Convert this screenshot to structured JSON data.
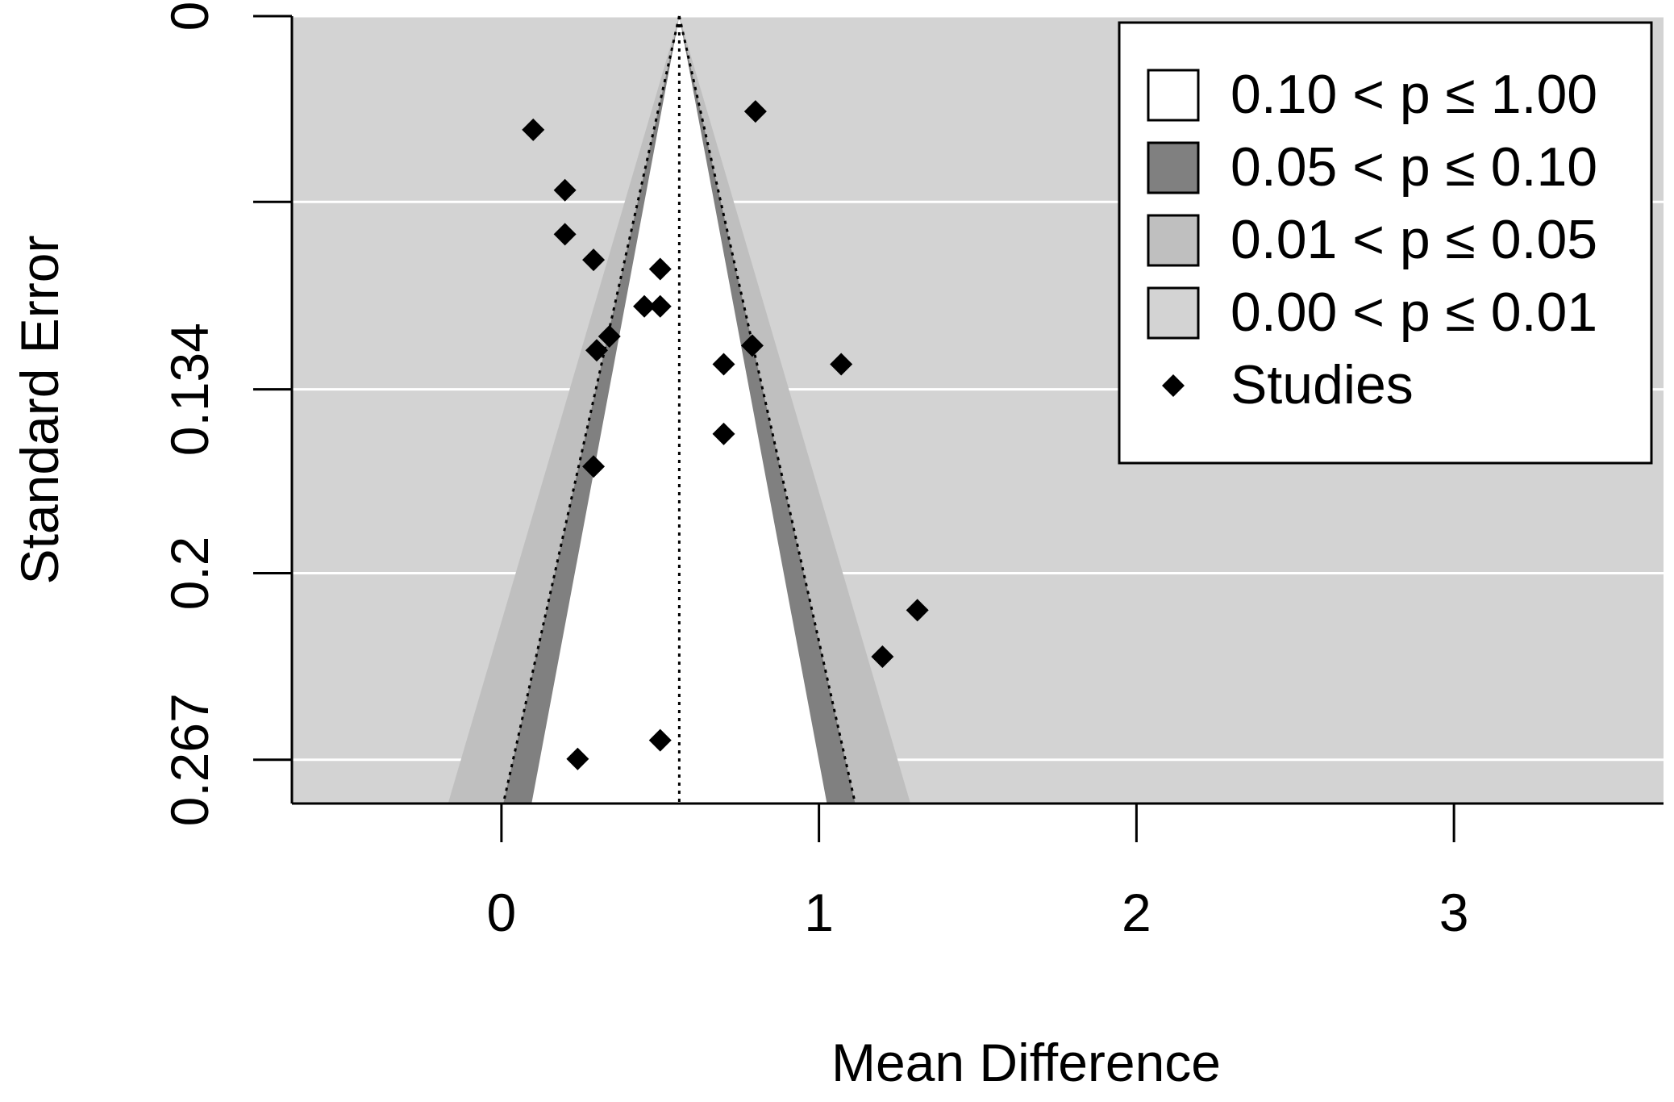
{
  "chart_data": {
    "type": "scatter",
    "subtype": "contour-enhanced funnel plot",
    "xlabel": "Mean Difference",
    "ylabel": "Standard Error",
    "xlim": [
      -0.66,
      3.66
    ],
    "ylim": [
      0.2827,
      0
    ],
    "x_ticks": [
      0,
      1,
      2,
      3
    ],
    "x_tick_labels": [
      "0",
      "1",
      "2",
      "3"
    ],
    "y_ticks": [
      0,
      0.0667,
      0.134,
      0.2,
      0.267
    ],
    "y_tick_labels": [
      "0",
      "",
      "0.134",
      "0.2",
      "0.267"
    ],
    "y_gridlines": [
      0,
      0.0667,
      0.134,
      0.2,
      0.267
    ],
    "pooled_estimate": 0.56,
    "colors": {
      "panel_background": "#d3d3d3",
      "gridline": "#ffffff",
      "region_p_0_10_to_1_00": "#ffffff",
      "region_p_0_05_to_0_10": "#808080",
      "region_p_0_01_to_0_05": "#bfbfbf",
      "region_p_0_00_to_0_01": "#d3d3d3",
      "points": "#000000"
    },
    "contours": [
      {
        "label": "0.10 < p ≤ 1.00",
        "z": 1.645,
        "fill": "#ffffff"
      },
      {
        "label": "0.05 < p ≤ 0.10",
        "z": 1.96,
        "fill": "#808080"
      },
      {
        "label": "0.01 < p ≤ 0.05",
        "z": 2.576,
        "fill": "#bfbfbf"
      },
      {
        "label": "0.00 < p ≤ 0.01",
        "z": null,
        "fill": "#d3d3d3"
      }
    ],
    "legend": {
      "placement": "top-right",
      "entries": [
        {
          "label": "0.10 < p ≤ 1.00",
          "symbol": "box",
          "fill": "#ffffff"
        },
        {
          "label": "0.05 < p ≤ 0.10",
          "symbol": "box",
          "fill": "#808080"
        },
        {
          "label": "0.01 < p ≤ 0.05",
          "symbol": "box",
          "fill": "#bfbfbf"
        },
        {
          "label": "0.00 < p ≤ 0.01",
          "symbol": "box",
          "fill": "#d3d3d3"
        },
        {
          "label": "Studies",
          "symbol": "diamond",
          "fill": "#000000"
        }
      ]
    },
    "series": [
      {
        "name": "Studies",
        "points": [
          {
            "x": 0.1,
            "y": 0.0408
          },
          {
            "x": 0.8,
            "y": 0.0342
          },
          {
            "x": 0.2,
            "y": 0.0625
          },
          {
            "x": 0.2,
            "y": 0.0783
          },
          {
            "x": 0.29,
            "y": 0.0875
          },
          {
            "x": 0.5,
            "y": 0.0908
          },
          {
            "x": 0.45,
            "y": 0.1042
          },
          {
            "x": 0.5,
            "y": 0.1042
          },
          {
            "x": 0.34,
            "y": 0.115
          },
          {
            "x": 0.3,
            "y": 0.12
          },
          {
            "x": 0.79,
            "y": 0.1183
          },
          {
            "x": 0.7,
            "y": 0.125
          },
          {
            "x": 1.07,
            "y": 0.125
          },
          {
            "x": 0.7,
            "y": 0.15
          },
          {
            "x": 0.29,
            "y": 0.1617
          },
          {
            "x": 1.31,
            "y": 0.2133
          },
          {
            "x": 1.2,
            "y": 0.23
          },
          {
            "x": 0.5,
            "y": 0.26
          },
          {
            "x": 0.24,
            "y": 0.2667
          }
        ]
      }
    ]
  }
}
